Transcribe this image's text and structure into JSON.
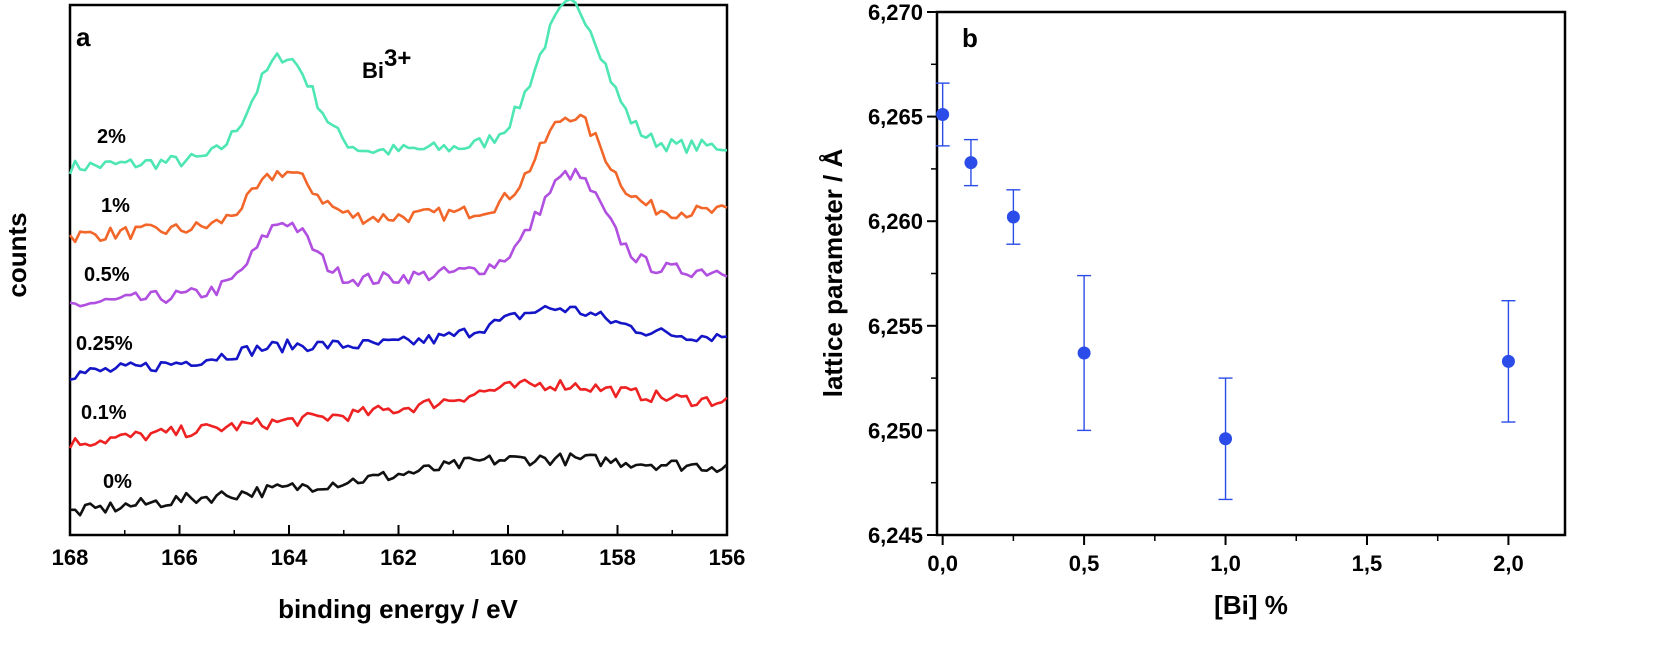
{
  "chart_data": [
    {
      "panel": "a",
      "type": "line",
      "xlabel": "binding energy / eV",
      "ylabel": "counts",
      "annotation": "Bi",
      "annotation_sup": "3+",
      "xlim": [
        168,
        156
      ],
      "xticks": [
        168,
        166,
        164,
        162,
        160,
        158,
        156
      ],
      "yticks_shown": false,
      "series": [
        {
          "name": "2%",
          "color": "#4ee6b4",
          "offset": 5.0,
          "noise": 0.1,
          "background": [
            0.0,
            0.3
          ],
          "peaks": [
            {
              "center": 164.1,
              "height": 1.45,
              "width": 0.55
            },
            {
              "center": 158.85,
              "height": 2.05,
              "width": 0.6
            }
          ]
        },
        {
          "name": "1%",
          "color": "#f2662a",
          "offset": 4.0,
          "noise": 0.1,
          "background": [
            0.0,
            0.35
          ],
          "peaks": [
            {
              "center": 164.1,
              "height": 0.75,
              "width": 0.55
            },
            {
              "center": 158.85,
              "height": 1.4,
              "width": 0.6
            }
          ]
        },
        {
          "name": "0.5%",
          "color": "#b04fe0",
          "offset": 3.0,
          "noise": 0.1,
          "background": [
            0.0,
            0.5
          ],
          "peaks": [
            {
              "center": 164.1,
              "height": 0.95,
              "width": 0.5
            },
            {
              "center": 158.85,
              "height": 1.4,
              "width": 0.6
            }
          ]
        },
        {
          "name": "0.25%",
          "color": "#1515c8",
          "offset": 2.0,
          "noise": 0.09,
          "background": [
            0.0,
            0.55
          ],
          "peaks": [
            {
              "center": 164.2,
              "height": 0.12,
              "width": 0.9
            },
            {
              "center": 159.1,
              "height": 0.4,
              "width": 0.9
            }
          ]
        },
        {
          "name": "0.1%",
          "color": "#ee2222",
          "offset": 1.0,
          "noise": 0.09,
          "background": [
            0.0,
            0.6
          ],
          "peaks": [
            {
              "center": 159.2,
              "height": 0.25,
              "width": 1.2
            }
          ]
        },
        {
          "name": "0%",
          "color": "#111111",
          "offset": 0.0,
          "noise": 0.09,
          "background": [
            0.0,
            0.65
          ],
          "peaks": [
            {
              "center": 159.3,
              "height": 0.12,
              "width": 1.5
            }
          ]
        }
      ]
    },
    {
      "panel": "b",
      "type": "scatter",
      "xlabel": "[Bi] %",
      "ylabel": "lattice parameter / Å",
      "xlim": [
        -0.02,
        2.2
      ],
      "ylim": [
        6.245,
        6.27
      ],
      "xticks": [
        0.0,
        0.5,
        1.0,
        1.5,
        2.0
      ],
      "xtick_labels": [
        "0,0",
        "0,5",
        "1,0",
        "1,5",
        "2,0"
      ],
      "yticks": [
        6.245,
        6.25,
        6.255,
        6.26,
        6.265,
        6.27
      ],
      "ytick_labels": [
        "6,245",
        "6,250",
        "6,255",
        "6,260",
        "6,265",
        "6,270"
      ],
      "marker_color": "#2b4ce8",
      "x": [
        0.0,
        0.1,
        0.25,
        0.5,
        1.0,
        2.0
      ],
      "y": [
        6.2651,
        6.2628,
        6.2602,
        6.2537,
        6.2496,
        6.2533
      ],
      "yerr": [
        0.0015,
        0.0011,
        0.0013,
        0.0037,
        0.0029,
        0.0029
      ]
    }
  ]
}
